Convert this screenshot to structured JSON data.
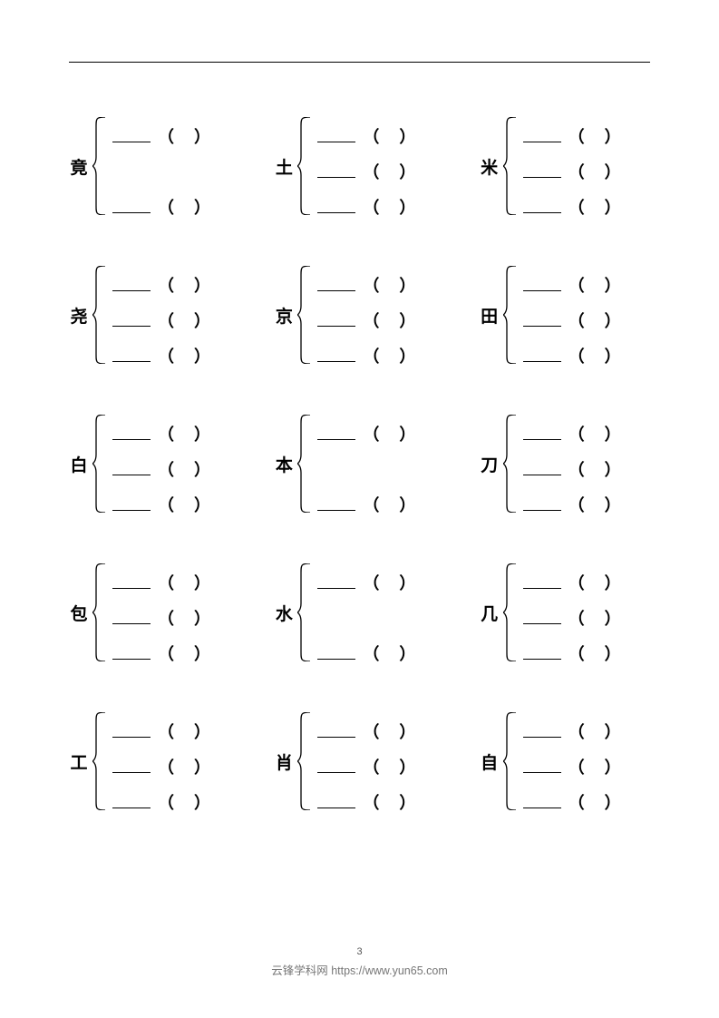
{
  "page_number": "3",
  "footer_text": "云锋学科网 https://www.yun65.com",
  "paren_open": "（",
  "paren_close": "）",
  "brace_height": 108,
  "rows": [
    {
      "cells": [
        {
          "char": "竟",
          "slots": [
            true,
            false,
            true
          ]
        },
        {
          "char": "土",
          "slots": [
            true,
            true,
            true
          ]
        },
        {
          "char": "米",
          "slots": [
            true,
            true,
            true
          ]
        }
      ]
    },
    {
      "cells": [
        {
          "char": "尧",
          "slots": [
            true,
            true,
            true
          ]
        },
        {
          "char": "京",
          "slots": [
            true,
            true,
            true
          ]
        },
        {
          "char": "田",
          "slots": [
            true,
            true,
            true
          ]
        }
      ]
    },
    {
      "cells": [
        {
          "char": "白",
          "slots": [
            true,
            true,
            true
          ]
        },
        {
          "char": "本",
          "slots": [
            true,
            false,
            true
          ]
        },
        {
          "char": "刀",
          "slots": [
            true,
            true,
            true
          ]
        }
      ]
    },
    {
      "cells": [
        {
          "char": "包",
          "slots": [
            true,
            true,
            true
          ]
        },
        {
          "char": "水",
          "slots": [
            true,
            false,
            true
          ]
        },
        {
          "char": "几",
          "slots": [
            true,
            true,
            true
          ]
        }
      ]
    },
    {
      "cells": [
        {
          "char": "工",
          "slots": [
            true,
            true,
            true
          ]
        },
        {
          "char": "肖",
          "slots": [
            true,
            true,
            true
          ]
        },
        {
          "char": "自",
          "slots": [
            true,
            true,
            true
          ]
        }
      ]
    }
  ]
}
